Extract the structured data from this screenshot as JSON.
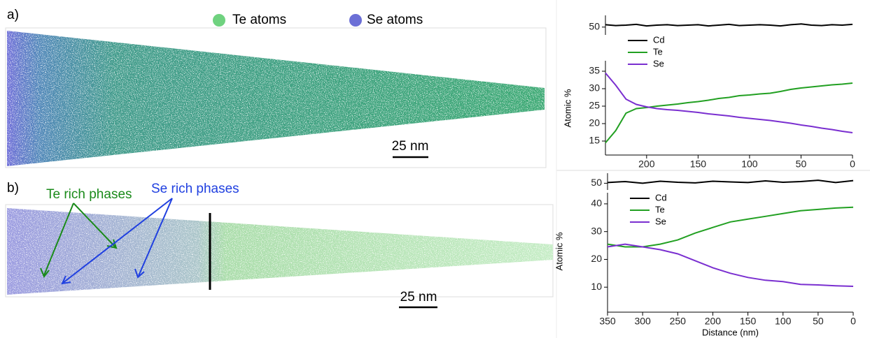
{
  "figure": {
    "legend": {
      "te": "Te atoms",
      "se": "Se atoms"
    },
    "panel_a": {
      "label": "a)",
      "scale_bar": "25 nm"
    },
    "panel_b": {
      "label": "b)",
      "scale_bar": "25 nm",
      "annotations": [
        "Te rich phases",
        "Se rich phases"
      ]
    }
  },
  "chart_data": [
    {
      "type": "line",
      "ylabel": "Atomic %",
      "x": [
        240,
        230,
        220,
        210,
        200,
        190,
        180,
        170,
        160,
        150,
        140,
        130,
        120,
        110,
        100,
        90,
        80,
        70,
        60,
        50,
        40,
        30,
        20,
        10,
        0
      ],
      "xlim": [
        240,
        0
      ],
      "xticks": [
        200,
        150,
        100,
        50,
        0
      ],
      "ylim": [
        11,
        38
      ],
      "yticks": [
        15,
        20,
        25,
        30,
        35
      ],
      "y2lim": [
        48,
        53
      ],
      "y2ticks": [
        50
      ],
      "series": [
        {
          "name": "Cd",
          "color": "#000000",
          "axis": "y2",
          "values": [
            50.6,
            50.4,
            50.5,
            50.7,
            50.3,
            50.5,
            50.6,
            50.4,
            50.5,
            50.6,
            50.3,
            50.5,
            50.7,
            50.4,
            50.5,
            50.6,
            50.5,
            50.3,
            50.6,
            50.8,
            50.5,
            50.4,
            50.6,
            50.5,
            50.7
          ]
        },
        {
          "name": "Te",
          "color": "#22a022",
          "values": [
            14.5,
            18,
            23,
            24.3,
            24.6,
            25,
            25.3,
            25.6,
            26,
            26.3,
            26.7,
            27.2,
            27.5,
            28,
            28.2,
            28.5,
            28.7,
            29.2,
            29.8,
            30.2,
            30.5,
            30.8,
            31.1,
            31.3,
            31.6
          ]
        },
        {
          "name": "Se",
          "color": "#7a2fd0",
          "values": [
            34.5,
            31,
            27,
            25.5,
            24.8,
            24.3,
            24,
            23.8,
            23.5,
            23.2,
            22.8,
            22.5,
            22.2,
            21.8,
            21.5,
            21.2,
            20.9,
            20.5,
            20.1,
            19.6,
            19.2,
            18.7,
            18.3,
            17.8,
            17.4
          ]
        }
      ]
    },
    {
      "type": "line",
      "ylabel": "Atomic %",
      "xlabel": "Distance (nm)",
      "x": [
        350,
        325,
        300,
        275,
        250,
        225,
        200,
        175,
        150,
        125,
        100,
        75,
        50,
        25,
        0
      ],
      "xlim": [
        350,
        0
      ],
      "xticks": [
        350,
        300,
        250,
        200,
        150,
        100,
        50,
        0
      ],
      "ylim": [
        1,
        44
      ],
      "yticks": [
        10,
        20,
        30,
        40
      ],
      "y2lim": [
        48,
        53
      ],
      "y2ticks": [
        50
      ],
      "series": [
        {
          "name": "Cd",
          "color": "#000000",
          "axis": "y2",
          "values": [
            50.2,
            50.5,
            50.0,
            50.6,
            50.3,
            50.1,
            50.6,
            50.4,
            50.2,
            50.7,
            50.3,
            50.5,
            50.9,
            50.2,
            50.8
          ]
        },
        {
          "name": "Te",
          "color": "#22a022",
          "values": [
            25.5,
            24.5,
            24.5,
            25.5,
            27,
            29.5,
            31.5,
            33.5,
            34.5,
            35.5,
            36.5,
            37.5,
            38,
            38.5,
            38.8
          ]
        },
        {
          "name": "Se",
          "color": "#7a2fd0",
          "values": [
            24.5,
            25.5,
            24.5,
            23.5,
            22,
            19.5,
            17,
            15,
            13.5,
            12.5,
            12,
            11,
            10.8,
            10.5,
            10.3
          ]
        }
      ]
    }
  ]
}
